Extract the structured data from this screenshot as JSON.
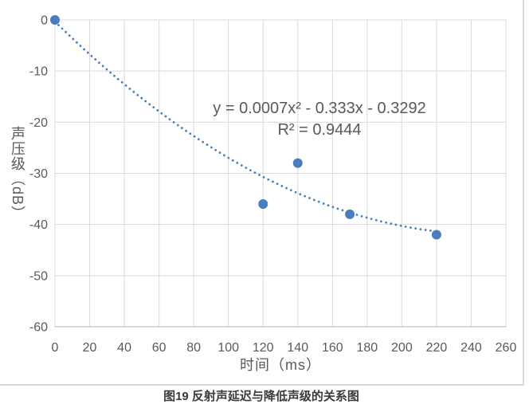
{
  "page": {
    "caption": "图19 反射声延迟与降低声级的关系图"
  },
  "chart_data": {
    "type": "scatter",
    "title": "",
    "xlabel": "时间（ms）",
    "ylabel": "声压级（dB）",
    "points": [
      {
        "x": 0,
        "y": 0
      },
      {
        "x": 120,
        "y": -36
      },
      {
        "x": 140,
        "y": -28
      },
      {
        "x": 170,
        "y": -38
      },
      {
        "x": 220,
        "y": -42
      }
    ],
    "xlim": [
      0,
      260
    ],
    "ylim": [
      -60,
      0
    ],
    "x_ticks": [
      0,
      20,
      40,
      60,
      80,
      100,
      120,
      140,
      160,
      180,
      200,
      220,
      240,
      260
    ],
    "y_ticks": [
      0,
      -10,
      -20,
      -30,
      -40,
      -50,
      -60
    ],
    "grid": true,
    "legend_position": "none",
    "trendline": {
      "style": "dotted",
      "equation_label": "y = 0.0007x² - 0.333x - 0.3292",
      "r_squared_label": "R² = 0.9444",
      "fit": {
        "a": 0.000665,
        "b": -0.3328,
        "c": -0.33
      },
      "x_range": [
        0,
        220
      ]
    },
    "colors": {
      "series": "#4a7dbe",
      "gridline": "#d9d9d9",
      "axis_line": "#bfbfbf",
      "tick_label": "#595959",
      "annotation": "#595959",
      "caption": "#3a3a3a"
    }
  }
}
